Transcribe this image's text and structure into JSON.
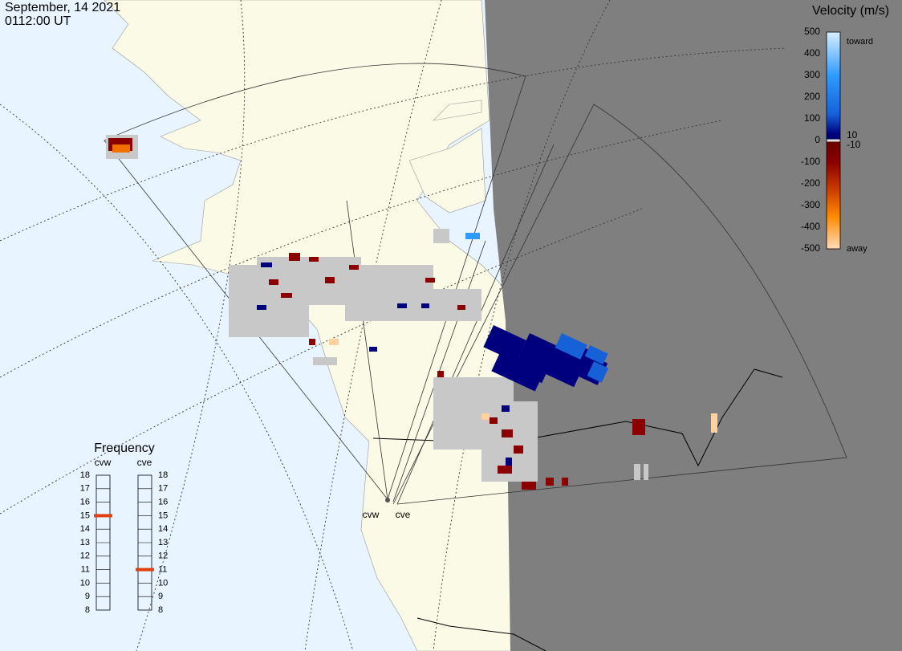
{
  "header": {
    "date": "September, 14 2021",
    "time": "0112:00 UT"
  },
  "colorbar": {
    "title": "Velocity (m/s)",
    "ticks": [
      500,
      400,
      300,
      200,
      100,
      0,
      -100,
      -200,
      -300,
      -400,
      -500
    ],
    "inner_ticks": [
      10,
      -10
    ],
    "toward": "toward",
    "away": "away"
  },
  "frequency": {
    "title": "Frequency",
    "ticks": [
      8,
      9,
      10,
      11,
      12,
      13,
      14,
      15,
      16,
      17,
      18
    ],
    "radars": [
      {
        "name": "cvw",
        "value": 15
      },
      {
        "name": "cve",
        "value": 11
      }
    ]
  },
  "sites": [
    "cvw",
    "cve"
  ]
}
